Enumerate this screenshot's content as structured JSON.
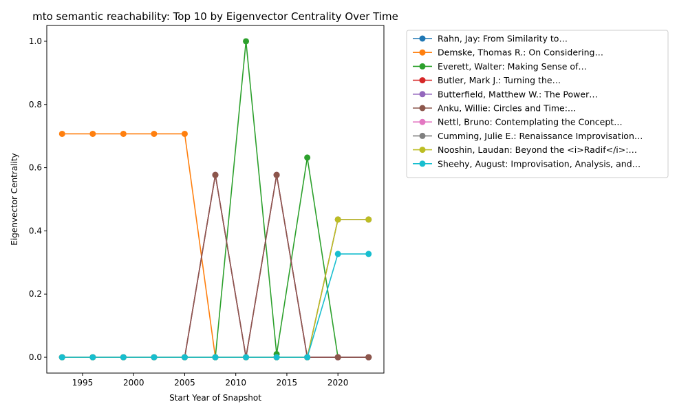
{
  "chart_data": {
    "type": "line",
    "title": "mto semantic reachability: Top 10 by Eigenvector Centrality Over Time",
    "xlabel": "Start Year of Snapshot",
    "ylabel": "Eigenvector Centrality",
    "x": [
      1993,
      1996,
      1999,
      2002,
      2005,
      2008,
      2011,
      2014,
      2017,
      2020,
      2023
    ],
    "xlim": [
      1991.5,
      2024.5
    ],
    "ylim": [
      -0.05,
      1.05
    ],
    "xticks": [
      1995,
      2000,
      2005,
      2010,
      2015,
      2020
    ],
    "xtick_labels": [
      "1995",
      "2000",
      "2005",
      "2010",
      "2015",
      "2020"
    ],
    "yticks": [
      0.0,
      0.2,
      0.4,
      0.6,
      0.8,
      1.0
    ],
    "ytick_labels": [
      "0.0",
      "0.2",
      "0.4",
      "0.6",
      "0.8",
      "1.0"
    ],
    "legend_position": "outside-right",
    "grid": false,
    "series": [
      {
        "name": "Rahn, Jay: From Similarity to…",
        "color": "#1f77b4",
        "values": [
          0,
          0,
          0,
          0,
          0,
          0,
          0,
          0,
          0,
          0,
          0
        ]
      },
      {
        "name": "Demske, Thomas R.: On Considering…",
        "color": "#ff7f0e",
        "values": [
          0.707,
          0.707,
          0.707,
          0.707,
          0.707,
          0,
          0,
          0,
          0,
          0,
          0
        ]
      },
      {
        "name": "Everett, Walter: Making Sense of…",
        "color": "#2ca02c",
        "values": [
          0,
          0,
          0,
          0,
          0,
          0,
          1.0,
          0.01,
          0.632,
          0,
          0
        ]
      },
      {
        "name": "Butler, Mark J.: Turning the…",
        "color": "#d62728",
        "values": [
          0,
          0,
          0,
          0,
          0,
          0.577,
          0,
          0.577,
          0,
          0,
          0
        ]
      },
      {
        "name": "Butterfield, Matthew W.: The Power…",
        "color": "#9467bd",
        "values": [
          0,
          0,
          0,
          0,
          0,
          0.577,
          0,
          0.577,
          0,
          0,
          0
        ]
      },
      {
        "name": "Anku, Willie: Circles and Time:…",
        "color": "#8c564b",
        "values": [
          0,
          0,
          0,
          0,
          0,
          0.577,
          0,
          0.577,
          0,
          0,
          0
        ]
      },
      {
        "name": "Nettl, Bruno: Contemplating the Concept…",
        "color": "#e377c2",
        "values": [
          0,
          0,
          0,
          0,
          0,
          0,
          0,
          0,
          0,
          0.436,
          0.436
        ]
      },
      {
        "name": "Cumming, Julie E.: Renaissance Improvisation…",
        "color": "#7f7f7f",
        "values": [
          0,
          0,
          0,
          0,
          0,
          0,
          0,
          0,
          0,
          0.436,
          0.436
        ]
      },
      {
        "name": "Nooshin, Laudan: Beyond the <i>Radif</i>:…",
        "color": "#bcbd22",
        "values": [
          0,
          0,
          0,
          0,
          0,
          0,
          0,
          0,
          0,
          0.436,
          0.436
        ]
      },
      {
        "name": "Sheehy, August: Improvisation, Analysis, and…",
        "color": "#17becf",
        "values": [
          0,
          0,
          0,
          0,
          0,
          0,
          0,
          0,
          0,
          0.327,
          0.327
        ]
      }
    ]
  }
}
